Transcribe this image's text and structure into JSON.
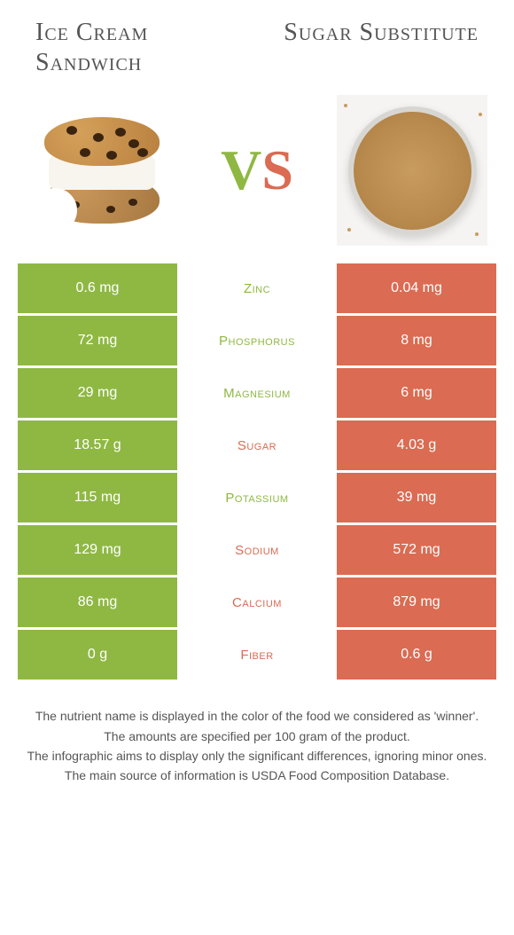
{
  "titles": {
    "left": "Ice Cream Sandwich",
    "right": "Sugar Substitute"
  },
  "vs": {
    "v": "V",
    "s": "S"
  },
  "colors": {
    "green": "#8fb843",
    "orange": "#db6b52"
  },
  "rows": [
    {
      "left": "0.6 mg",
      "label": "Zinc",
      "right": "0.04 mg",
      "winner": "left"
    },
    {
      "left": "72 mg",
      "label": "Phosphorus",
      "right": "8 mg",
      "winner": "left"
    },
    {
      "left": "29 mg",
      "label": "Magnesium",
      "right": "6 mg",
      "winner": "left"
    },
    {
      "left": "18.57 g",
      "label": "Sugar",
      "right": "4.03 g",
      "winner": "right"
    },
    {
      "left": "115 mg",
      "label": "Potassium",
      "right": "39 mg",
      "winner": "left"
    },
    {
      "left": "129 mg",
      "label": "Sodium",
      "right": "572 mg",
      "winner": "right"
    },
    {
      "left": "86 mg",
      "label": "Calcium",
      "right": "879 mg",
      "winner": "right"
    },
    {
      "left": "0 g",
      "label": "Fiber",
      "right": "0.6 g",
      "winner": "right"
    }
  ],
  "footer": {
    "line1": "The nutrient name is displayed in the color of the food we considered as 'winner'.",
    "line2": "The amounts are specified per 100 gram of the product.",
    "line3": "The infographic aims to display only the significant differences, ignoring minor ones.",
    "line4": "The main source of information is USDA Food Composition Database."
  }
}
